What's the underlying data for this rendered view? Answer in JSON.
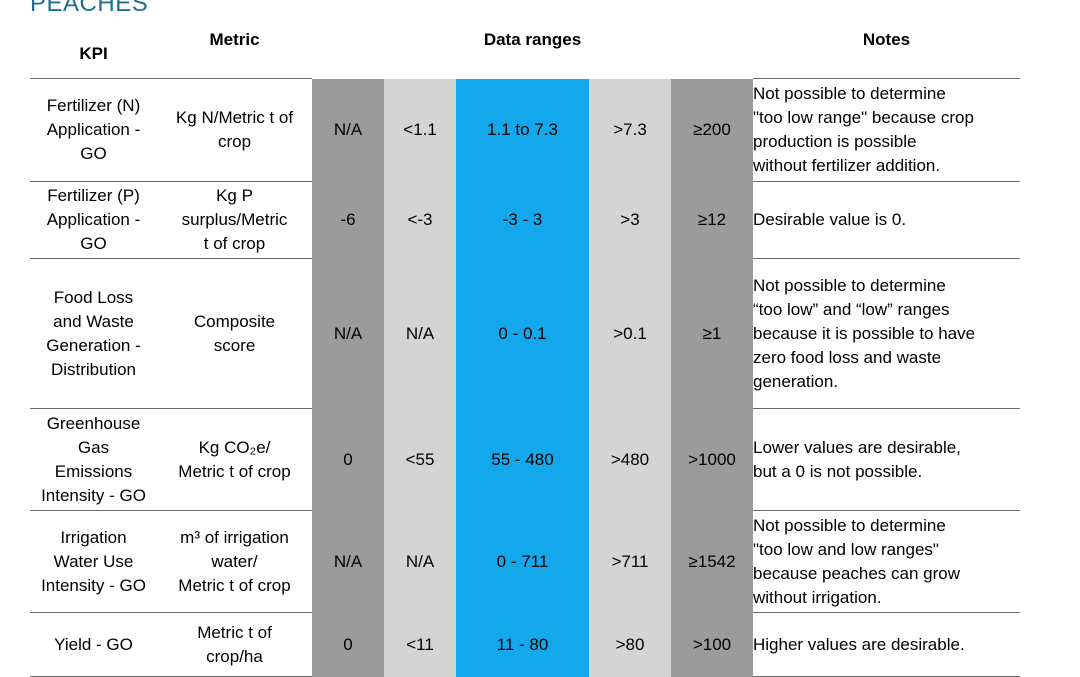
{
  "heading": "PEACHES",
  "headers": {
    "kpi": "KPI",
    "metric": "Metric",
    "ranges": "Data ranges",
    "notes": "Notes"
  },
  "rows": [
    {
      "kpi": [
        "Fertilizer (N)",
        "Application -",
        "GO"
      ],
      "metric": [
        "Kg N/Metric t of",
        "crop"
      ],
      "ranges": [
        "N/A",
        "<1.1",
        "1.1 to 7.3",
        ">7.3",
        "≥200"
      ],
      "notes": [
        "Not possible to determine",
        "\"too low range\" because crop",
        "production is possible",
        "without fertilizer addition."
      ]
    },
    {
      "kpi": [
        "Fertilizer (P)",
        "Application -",
        "GO"
      ],
      "metric": [
        "Kg P",
        "surplus/Metric",
        "t of crop"
      ],
      "ranges": [
        "-6",
        "<-3",
        "-3 - 3",
        ">3",
        "≥12"
      ],
      "notes": [
        "Desirable value is 0."
      ]
    },
    {
      "kpi": [
        "Food Loss",
        "and Waste",
        "Generation -",
        "Distribution"
      ],
      "metric": [
        "Composite",
        "score"
      ],
      "ranges": [
        "N/A",
        "N/A",
        "0 - 0.1",
        ">0.1",
        "≥1"
      ],
      "notes": [
        "Not possible to determine",
        "“too low” and “low” ranges",
        "because it is possible to have",
        "zero food loss and waste",
        "generation."
      ]
    },
    {
      "kpi": [
        "Greenhouse",
        "Gas",
        "Emissions",
        "Intensity - GO"
      ],
      "metric": [
        "Kg CO₂e/",
        "Metric t of crop"
      ],
      "ranges": [
        "0",
        "<55",
        "55 - 480",
        ">480",
        ">1000"
      ],
      "notes": [
        "Lower values are desirable,",
        "but a 0 is not possible."
      ]
    },
    {
      "kpi": [
        "Irrigation",
        "Water Use",
        "Intensity - GO"
      ],
      "metric": [
        "m³ of irrigation",
        "water/",
        "Metric t of crop"
      ],
      "ranges": [
        "N/A",
        "N/A",
        "0 - 711",
        ">711",
        "≥1542"
      ],
      "notes": [
        "Not possible to determine",
        "\"too low and low ranges\"",
        "because peaches can grow",
        "without irrigation."
      ]
    },
    {
      "kpi": [
        "Yield - GO"
      ],
      "metric": [
        "Metric t of",
        "crop/ha"
      ],
      "ranges": [
        "0",
        "<11",
        "11 - 80",
        ">80",
        ">100"
      ],
      "notes": [
        "Higher values are desirable."
      ]
    }
  ]
}
